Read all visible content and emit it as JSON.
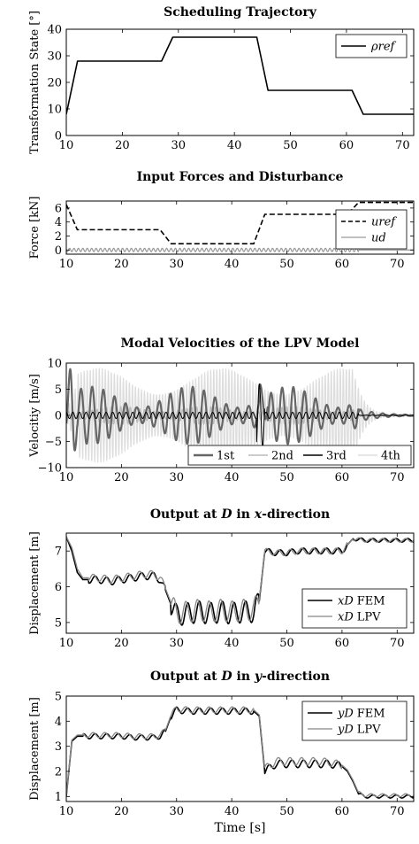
{
  "chart_data": [
    {
      "type": "line",
      "title": "Scheduling Trajectory",
      "ylabel": "Transformation State [°]",
      "xlabel": "",
      "xlim": [
        10,
        72
      ],
      "ylim": [
        0,
        40
      ],
      "xticks": [
        "10",
        "20",
        "30",
        "40",
        "50",
        "60",
        "70"
      ],
      "yticks": [
        "0",
        "10",
        "20",
        "30",
        "40"
      ],
      "legend_position": "top-right",
      "grid": false,
      "series": [
        {
          "name": "ρref",
          "color": "#000000",
          "style": "solid",
          "x": [
            10,
            12,
            27,
            29,
            44,
            46,
            61,
            63,
            72
          ],
          "y": [
            8,
            28,
            28,
            37,
            37,
            17,
            17,
            8,
            8
          ]
        }
      ]
    },
    {
      "type": "line",
      "title": "Input Forces and Disturbance",
      "ylabel": "Force [kN]",
      "xlabel": "",
      "xlim": [
        10,
        73
      ],
      "ylim": [
        -0.6,
        7
      ],
      "xticks": [
        "10",
        "20",
        "30",
        "40",
        "50",
        "60",
        "70"
      ],
      "yticks": [
        "0",
        "2",
        "4",
        "6"
      ],
      "legend_position": "bottom-right",
      "grid": false,
      "series": [
        {
          "name": "uref",
          "color": "#000000",
          "style": "dashed",
          "x": [
            10,
            12,
            27,
            29,
            44,
            46,
            61,
            63,
            73
          ],
          "y": [
            6.5,
            2.9,
            2.9,
            0.9,
            0.9,
            5.1,
            5.1,
            6.8,
            6.8
          ]
        },
        {
          "name": "ud",
          "color": "#999999",
          "style": "solid",
          "oscillation": {
            "x_start": 10,
            "x_end": 63,
            "amplitude": 0.25,
            "period": 0.8,
            "after": 0
          }
        }
      ]
    },
    {
      "type": "line",
      "title": "Modal Velocities of the LPV Model",
      "ylabel": "Velocitiy [m/s]",
      "xlabel": "",
      "xlim": [
        10,
        73
      ],
      "ylim": [
        -10,
        10
      ],
      "xticks": [
        "10",
        "20",
        "30",
        "40",
        "50",
        "60",
        "70"
      ],
      "yticks": [
        "−10",
        "−5",
        "0",
        "5",
        "10"
      ],
      "legend_position": "bottom-right",
      "legend_columns": 4,
      "grid": false,
      "series": [
        {
          "name": "1st",
          "color": "#666666",
          "style": "solid"
        },
        {
          "name": "2nd",
          "color": "#bbbbbb",
          "style": "solid"
        },
        {
          "name": "3rd",
          "color": "#000000",
          "style": "solid"
        },
        {
          "name": "4th",
          "color": "#dddddd",
          "style": "solid"
        }
      ]
    },
    {
      "type": "line",
      "title_pre": "Output at ",
      "title_var": "D",
      "title_mid": " in ",
      "title_var2": "x",
      "title_post": "-direction",
      "ylabel": "Displacement [m]",
      "xlabel": "",
      "xlim": [
        10,
        73
      ],
      "ylim": [
        4.7,
        7.5
      ],
      "xticks": [
        "10",
        "20",
        "30",
        "40",
        "50",
        "60",
        "70"
      ],
      "yticks": [
        "5",
        "6",
        "7"
      ],
      "legend_position": "bottom-right",
      "grid": false,
      "series": [
        {
          "name_var": "xD",
          "name": "FEM",
          "color": "#000000",
          "style": "solid",
          "x": [
            10,
            11,
            12,
            13,
            14,
            16,
            18,
            20,
            22,
            24,
            26,
            27,
            28,
            29,
            30,
            32,
            34,
            36,
            38,
            40,
            42,
            44,
            45,
            46,
            48,
            50,
            52,
            54,
            56,
            58,
            60,
            62,
            64,
            66,
            68,
            70,
            72,
            73
          ],
          "y": [
            7.4,
            7.0,
            6.4,
            6.2,
            6.2,
            6.2,
            6.15,
            6.2,
            6.25,
            6.3,
            6.3,
            6.2,
            5.9,
            5.5,
            5.2,
            5.25,
            5.3,
            5.25,
            5.3,
            5.25,
            5.3,
            5.3,
            5.6,
            7.0,
            6.95,
            6.95,
            7.0,
            7.0,
            7.0,
            7.0,
            7.0,
            7.35,
            7.3,
            7.3,
            7.3,
            7.3,
            7.3,
            7.3
          ]
        },
        {
          "name_var": "xD",
          "name": "LPV",
          "color": "#888888",
          "style": "solid",
          "x": [
            10,
            11,
            12,
            13,
            14,
            16,
            18,
            20,
            22,
            24,
            26,
            27,
            28,
            29,
            30,
            32,
            34,
            36,
            38,
            40,
            42,
            44,
            45,
            46,
            48,
            50,
            52,
            54,
            56,
            58,
            60,
            62,
            64,
            66,
            68,
            70,
            72,
            73
          ],
          "y": [
            7.4,
            7.1,
            6.5,
            6.25,
            6.25,
            6.25,
            6.2,
            6.25,
            6.3,
            6.35,
            6.35,
            6.25,
            5.95,
            5.55,
            5.25,
            5.3,
            5.35,
            5.3,
            5.35,
            5.3,
            5.35,
            5.35,
            5.65,
            7.0,
            6.95,
            6.95,
            7.0,
            7.0,
            7.0,
            7.0,
            7.0,
            7.35,
            7.3,
            7.3,
            7.3,
            7.3,
            7.3,
            7.3
          ]
        }
      ]
    },
    {
      "type": "line",
      "title_pre": "Output at ",
      "title_var": "D",
      "title_mid": " in ",
      "title_var2": "y",
      "title_post": "-direction",
      "ylabel": "Displacement [m]",
      "xlabel": "Time [s]",
      "xlim": [
        10,
        73
      ],
      "ylim": [
        0.8,
        5
      ],
      "xticks": [
        "10",
        "20",
        "30",
        "40",
        "50",
        "60",
        "70"
      ],
      "yticks": [
        "1",
        "2",
        "3",
        "4",
        "5"
      ],
      "legend_position": "top-right",
      "grid": false,
      "series": [
        {
          "name_var": "yD",
          "name": "FEM",
          "color": "#000000",
          "style": "solid",
          "x": [
            10,
            11,
            12,
            14,
            16,
            18,
            20,
            22,
            24,
            26,
            27,
            28,
            29,
            30,
            32,
            34,
            36,
            38,
            40,
            42,
            44,
            45,
            46,
            48,
            50,
            52,
            54,
            56,
            58,
            60,
            61,
            62,
            63,
            64,
            66,
            68,
            70,
            72,
            73
          ],
          "y": [
            1.0,
            3.2,
            3.4,
            3.4,
            3.4,
            3.4,
            3.4,
            3.35,
            3.35,
            3.35,
            3.4,
            3.6,
            4.2,
            4.45,
            4.4,
            4.4,
            4.4,
            4.4,
            4.4,
            4.4,
            4.4,
            4.2,
            2.0,
            2.3,
            2.3,
            2.3,
            2.3,
            2.3,
            2.3,
            2.2,
            2.0,
            1.6,
            1.1,
            1.0,
            1.0,
            1.0,
            1.0,
            1.0,
            1.0
          ]
        },
        {
          "name_var": "yD",
          "name": "LPV",
          "color": "#888888",
          "style": "solid",
          "x": [
            10,
            11,
            12,
            14,
            16,
            18,
            20,
            22,
            24,
            26,
            27,
            28,
            29,
            30,
            32,
            34,
            36,
            38,
            40,
            42,
            44,
            45,
            46,
            48,
            50,
            52,
            54,
            56,
            58,
            60,
            61,
            62,
            63,
            64,
            66,
            68,
            70,
            72,
            73
          ],
          "y": [
            1.0,
            3.25,
            3.45,
            3.45,
            3.45,
            3.45,
            3.45,
            3.4,
            3.4,
            3.4,
            3.45,
            3.65,
            4.25,
            4.5,
            4.45,
            4.45,
            4.45,
            4.45,
            4.45,
            4.45,
            4.45,
            4.25,
            2.1,
            2.4,
            2.4,
            2.4,
            2.4,
            2.4,
            2.35,
            2.25,
            2.05,
            1.65,
            1.15,
            1.05,
            1.05,
            1.05,
            1.05,
            1.05,
            1.05
          ]
        }
      ]
    }
  ]
}
